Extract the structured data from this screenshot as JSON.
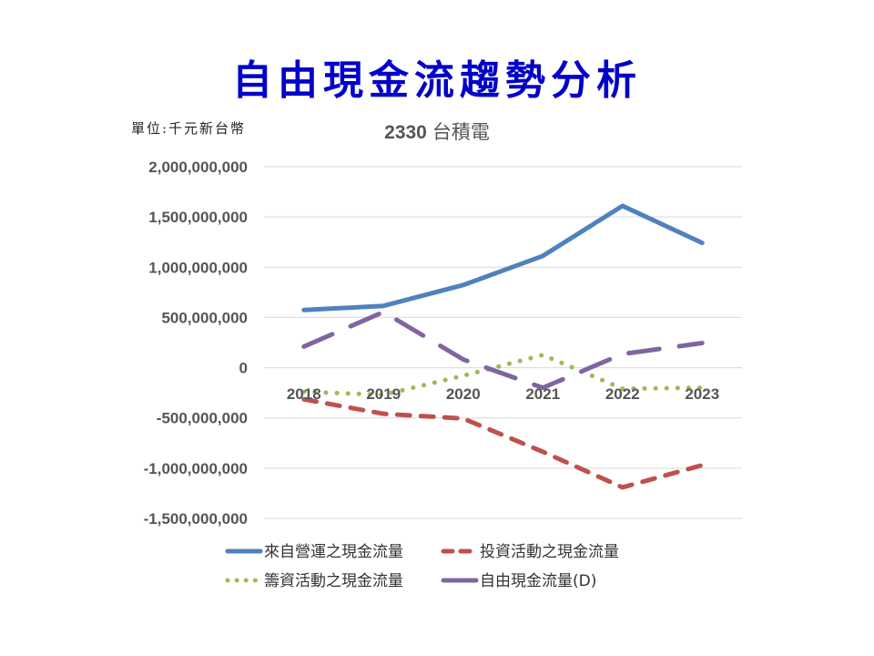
{
  "page_title": "自由現金流趨勢分析",
  "unit_label": "單位:千元新台幣",
  "chart_data": {
    "type": "line",
    "title": "2330 台積電",
    "title_parts": [
      "2330",
      "台積電"
    ],
    "categories": [
      "2018",
      "2019",
      "2020",
      "2021",
      "2022",
      "2023"
    ],
    "ylim": [
      -1500000000,
      2000000000
    ],
    "yticks": [
      2000000000,
      1500000000,
      1000000000,
      500000000,
      0,
      -500000000,
      -1000000000,
      -1500000000
    ],
    "ytick_labels": [
      "2,000,000,000",
      "1,500,000,000",
      "1,000,000,000",
      "500,000,000",
      "0",
      "-500,000,000",
      "-1,000,000,000",
      "-1,500,000,000"
    ],
    "grid": true,
    "legend_position": "bottom",
    "series": [
      {
        "name": "來自營運之現金流量",
        "color": "#4f81bd",
        "style": "solid",
        "values": [
          573954308,
          615138744,
          822666212,
          1112160722,
          1610599188,
          1241967047
        ]
      },
      {
        "name": "投資活動之現金流量",
        "color": "#c0504d",
        "style": "dash",
        "values": [
          -314268908,
          -458802082,
          -505781208,
          -836366722,
          -1190928455,
          -970000000
        ]
      },
      {
        "name": "籌資活動之現金流量",
        "color": "#9bbb59",
        "style": "dot",
        "values": [
          -240000000,
          -269660143,
          -80000000,
          127000000,
          -209000000,
          -200000000
        ]
      },
      {
        "name": "自由現金流量(D)",
        "color": "#8064a2",
        "style": "longdash",
        "values": [
          210000000,
          555000000,
          82000000,
          -200000000,
          136000000,
          245000000
        ]
      }
    ]
  }
}
